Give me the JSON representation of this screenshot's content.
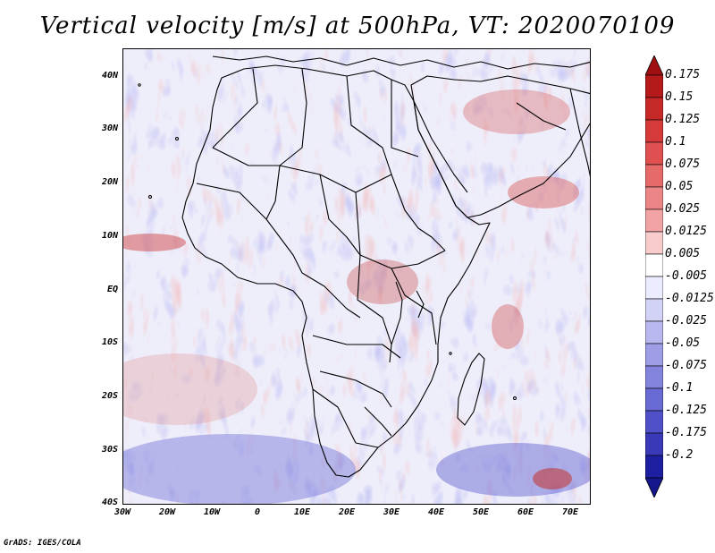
{
  "title": "Vertical velocity [m/s] at 500hPa, VT: 2020070109",
  "credit": "GrADS: IGES/COLA",
  "map": {
    "lat_labels": [
      "40N",
      "30N",
      "20N",
      "10N",
      "EQ",
      "10S",
      "20S",
      "30S",
      "40S"
    ],
    "lon_labels": [
      "30W",
      "20W",
      "10W",
      "0",
      "10E",
      "20E",
      "30E",
      "40E",
      "50E",
      "60E",
      "70E"
    ],
    "background_colors": {
      "positive": "#e88a7e",
      "negative": "#8a8ae0",
      "neutral": "#f6f0f6"
    }
  },
  "colorbar": {
    "labels": [
      "0.175",
      "0.15",
      "0.125",
      "0.1",
      "0.075",
      "0.05",
      "0.025",
      "0.0125",
      "0.005",
      "-0.005",
      "-0.0125",
      "-0.025",
      "-0.05",
      "-0.075",
      "-0.1",
      "-0.125",
      "-0.175",
      "-0.2"
    ],
    "colors": [
      "#b51a1a",
      "#c72828",
      "#d63a3a",
      "#e05050",
      "#e66a6a",
      "#ec8585",
      "#f2a3a3",
      "#f8cccc",
      "#ffffff",
      "#ececff",
      "#d2d2f6",
      "#b8b8ee",
      "#9e9ee6",
      "#8484de",
      "#6a6ad4",
      "#5050c8",
      "#3a3ab8",
      "#1e1ea0"
    ],
    "arrow_top": "#a01010",
    "arrow_bottom": "#15158c"
  }
}
